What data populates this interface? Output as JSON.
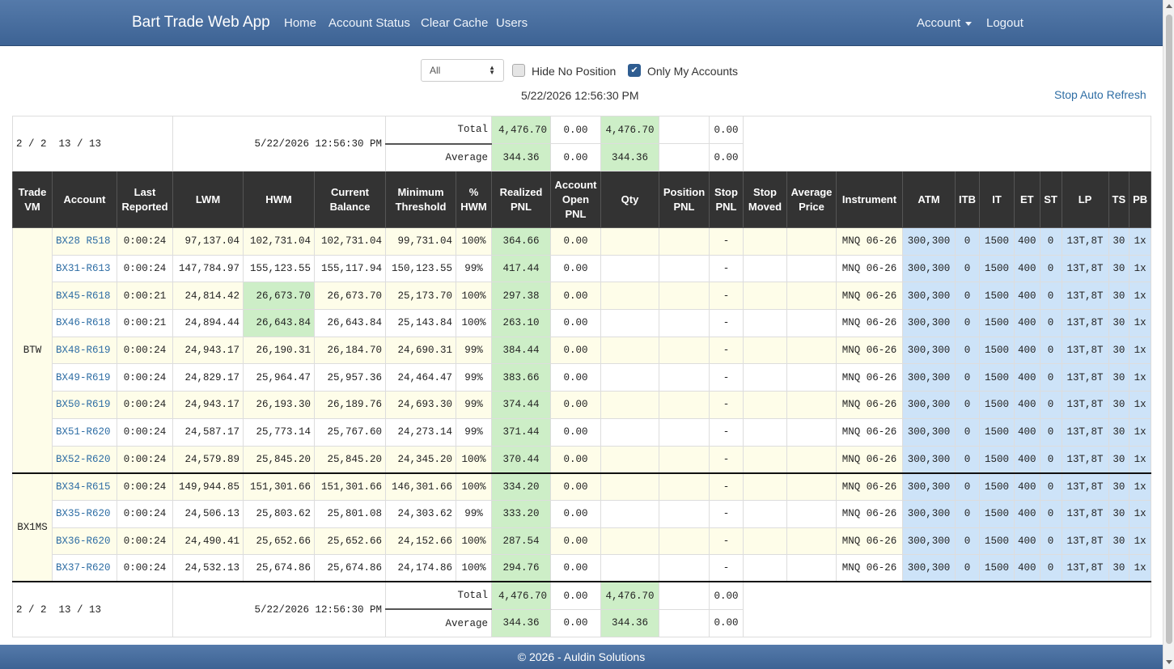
{
  "nav": {
    "brand": "Bart Trade Web App",
    "links": [
      "Home",
      "Account Status",
      "Clear Cache",
      "Users"
    ],
    "account": "Account",
    "logout": "Logout"
  },
  "controls": {
    "select_value": "All",
    "hide_no_position": "Hide No Position",
    "only_my_accounts": "Only My Accounts",
    "timestamp": "5/22/2026 12:56:30 PM",
    "stop_refresh": "Stop Auto Refresh"
  },
  "summary_top": {
    "counts": "2 / 2  13 / 13",
    "time": "5/22/2026 12:56:30 PM",
    "total_label": "Total",
    "total_realized": "4,476.70",
    "total_open": "0.00",
    "total_qty": "4,476.70",
    "total_stop": "0.00",
    "avg_label": "Average",
    "avg_realized": "344.36",
    "avg_open": "0.00",
    "avg_qty": "344.36",
    "avg_stop": "0.00"
  },
  "summary_bottom": {
    "counts": "2 / 2  13 / 13",
    "time": "5/22/2026 12:56:30 PM",
    "total_label": "Total",
    "total_realized": "4,476.70",
    "total_open": "0.00",
    "total_qty": "4,476.70",
    "total_stop": "0.00",
    "avg_label": "Average",
    "avg_realized": "344.36",
    "avg_open": "0.00",
    "avg_qty": "344.36",
    "avg_stop": "0.00"
  },
  "columns": [
    [
      "Trade",
      "VM"
    ],
    [
      "Account"
    ],
    [
      "Last",
      "Reported"
    ],
    [
      "LWM"
    ],
    [
      "HWM"
    ],
    [
      "Current",
      "Balance"
    ],
    [
      "Minimum",
      "Threshold"
    ],
    [
      "%",
      "HWM"
    ],
    [
      "Realized",
      "PNL"
    ],
    [
      "Account",
      "Open",
      "PNL"
    ],
    [
      "Qty"
    ],
    [
      "Position",
      "PNL"
    ],
    [
      "Stop",
      "PNL"
    ],
    [
      "Stop",
      "Moved"
    ],
    [
      "Average",
      "Price"
    ],
    [
      "Instrument"
    ],
    [
      "ATM"
    ],
    [
      "ITB"
    ],
    [
      "IT"
    ],
    [
      "ET"
    ],
    [
      "ST"
    ],
    [
      "LP"
    ],
    [
      "TS"
    ],
    [
      "PB"
    ]
  ],
  "groups": [
    {
      "vm": "BTW",
      "rows": [
        {
          "account": "BX28 R518",
          "last": "0:00:24",
          "lwm": "97,137.04",
          "hwm": "102,731.04",
          "bal": "102,731.04",
          "min": "99,731.04",
          "pct": "100%",
          "realized": "364.66",
          "open": "0.00",
          "stop": "-",
          "instrument": "MNQ 06-26",
          "atm": "300,300",
          "itb": "0",
          "it": "1500",
          "et": "400",
          "st": "0",
          "lp": "13T,8T",
          "ts": "30",
          "pb": "1x",
          "hwm_hl": false
        },
        {
          "account": "BX31-R613",
          "last": "0:00:24",
          "lwm": "147,784.97",
          "hwm": "155,123.55",
          "bal": "155,117.94",
          "min": "150,123.55",
          "pct": "99%",
          "realized": "417.44",
          "open": "0.00",
          "stop": "-",
          "instrument": "MNQ 06-26",
          "atm": "300,300",
          "itb": "0",
          "it": "1500",
          "et": "400",
          "st": "0",
          "lp": "13T,8T",
          "ts": "30",
          "pb": "1x",
          "hwm_hl": false
        },
        {
          "account": "BX45-R618",
          "last": "0:00:21",
          "lwm": "24,814.42",
          "hwm": "26,673.70",
          "bal": "26,673.70",
          "min": "25,173.70",
          "pct": "100%",
          "realized": "297.38",
          "open": "0.00",
          "stop": "-",
          "instrument": "MNQ 06-26",
          "atm": "300,300",
          "itb": "0",
          "it": "1500",
          "et": "400",
          "st": "0",
          "lp": "13T,8T",
          "ts": "30",
          "pb": "1x",
          "hwm_hl": true
        },
        {
          "account": "BX46-R618",
          "last": "0:00:21",
          "lwm": "24,894.44",
          "hwm": "26,643.84",
          "bal": "26,643.84",
          "min": "25,143.84",
          "pct": "100%",
          "realized": "263.10",
          "open": "0.00",
          "stop": "-",
          "instrument": "MNQ 06-26",
          "atm": "300,300",
          "itb": "0",
          "it": "1500",
          "et": "400",
          "st": "0",
          "lp": "13T,8T",
          "ts": "30",
          "pb": "1x",
          "hwm_hl": true
        },
        {
          "account": "BX48-R619",
          "last": "0:00:24",
          "lwm": "24,943.17",
          "hwm": "26,190.31",
          "bal": "26,184.70",
          "min": "24,690.31",
          "pct": "99%",
          "realized": "384.44",
          "open": "0.00",
          "stop": "-",
          "instrument": "MNQ 06-26",
          "atm": "300,300",
          "itb": "0",
          "it": "1500",
          "et": "400",
          "st": "0",
          "lp": "13T,8T",
          "ts": "30",
          "pb": "1x",
          "hwm_hl": false
        },
        {
          "account": "BX49-R619",
          "last": "0:00:24",
          "lwm": "24,829.17",
          "hwm": "25,964.47",
          "bal": "25,957.36",
          "min": "24,464.47",
          "pct": "99%",
          "realized": "383.66",
          "open": "0.00",
          "stop": "-",
          "instrument": "MNQ 06-26",
          "atm": "300,300",
          "itb": "0",
          "it": "1500",
          "et": "400",
          "st": "0",
          "lp": "13T,8T",
          "ts": "30",
          "pb": "1x",
          "hwm_hl": false
        },
        {
          "account": "BX50-R619",
          "last": "0:00:24",
          "lwm": "24,943.17",
          "hwm": "26,193.30",
          "bal": "26,189.76",
          "min": "24,693.30",
          "pct": "99%",
          "realized": "374.44",
          "open": "0.00",
          "stop": "-",
          "instrument": "MNQ 06-26",
          "atm": "300,300",
          "itb": "0",
          "it": "1500",
          "et": "400",
          "st": "0",
          "lp": "13T,8T",
          "ts": "30",
          "pb": "1x",
          "hwm_hl": false
        },
        {
          "account": "BX51-R620",
          "last": "0:00:24",
          "lwm": "24,587.17",
          "hwm": "25,773.14",
          "bal": "25,767.60",
          "min": "24,273.14",
          "pct": "99%",
          "realized": "371.44",
          "open": "0.00",
          "stop": "-",
          "instrument": "MNQ 06-26",
          "atm": "300,300",
          "itb": "0",
          "it": "1500",
          "et": "400",
          "st": "0",
          "lp": "13T,8T",
          "ts": "30",
          "pb": "1x",
          "hwm_hl": false
        },
        {
          "account": "BX52-R620",
          "last": "0:00:24",
          "lwm": "24,579.89",
          "hwm": "25,845.20",
          "bal": "25,845.20",
          "min": "24,345.20",
          "pct": "100%",
          "realized": "370.44",
          "open": "0.00",
          "stop": "-",
          "instrument": "MNQ 06-26",
          "atm": "300,300",
          "itb": "0",
          "it": "1500",
          "et": "400",
          "st": "0",
          "lp": "13T,8T",
          "ts": "30",
          "pb": "1x",
          "hwm_hl": false
        }
      ]
    },
    {
      "vm": "BX1MS",
      "rows": [
        {
          "account": "BX34-R615",
          "last": "0:00:24",
          "lwm": "149,944.85",
          "hwm": "151,301.66",
          "bal": "151,301.66",
          "min": "146,301.66",
          "pct": "100%",
          "realized": "334.20",
          "open": "0.00",
          "stop": "-",
          "instrument": "MNQ 06-26",
          "atm": "300,300",
          "itb": "0",
          "it": "1500",
          "et": "400",
          "st": "0",
          "lp": "13T,8T",
          "ts": "30",
          "pb": "1x",
          "hwm_hl": false
        },
        {
          "account": "BX35-R620",
          "last": "0:00:24",
          "lwm": "24,506.13",
          "hwm": "25,803.62",
          "bal": "25,801.08",
          "min": "24,303.62",
          "pct": "99%",
          "realized": "333.20",
          "open": "0.00",
          "stop": "-",
          "instrument": "MNQ 06-26",
          "atm": "300,300",
          "itb": "0",
          "it": "1500",
          "et": "400",
          "st": "0",
          "lp": "13T,8T",
          "ts": "30",
          "pb": "1x",
          "hwm_hl": false
        },
        {
          "account": "BX36-R620",
          "last": "0:00:24",
          "lwm": "24,490.41",
          "hwm": "25,652.66",
          "bal": "25,652.66",
          "min": "24,152.66",
          "pct": "100%",
          "realized": "287.54",
          "open": "0.00",
          "stop": "-",
          "instrument": "MNQ 06-26",
          "atm": "300,300",
          "itb": "0",
          "it": "1500",
          "et": "400",
          "st": "0",
          "lp": "13T,8T",
          "ts": "30",
          "pb": "1x",
          "hwm_hl": false
        },
        {
          "account": "BX37-R620",
          "last": "0:00:24",
          "lwm": "24,532.13",
          "hwm": "25,674.86",
          "bal": "25,674.86",
          "min": "24,174.86",
          "pct": "100%",
          "realized": "294.76",
          "open": "0.00",
          "stop": "-",
          "instrument": "MNQ 06-26",
          "atm": "300,300",
          "itb": "0",
          "it": "1500",
          "et": "400",
          "st": "0",
          "lp": "13T,8T",
          "ts": "30",
          "pb": "1x",
          "hwm_hl": false
        }
      ]
    }
  ],
  "footer": "© 2026 - Auldin Solutions"
}
